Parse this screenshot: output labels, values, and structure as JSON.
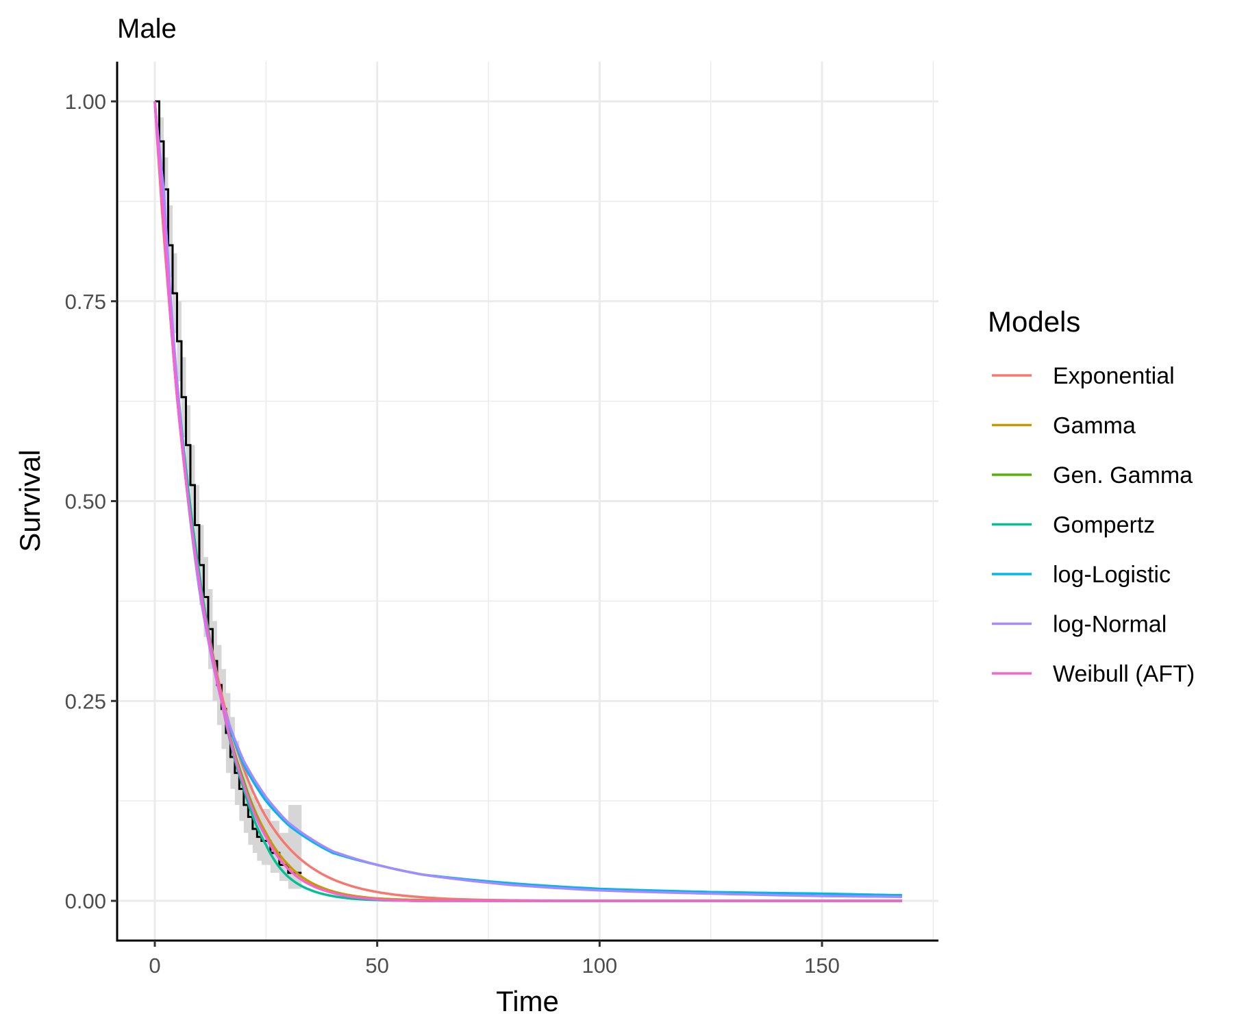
{
  "chart_data": {
    "type": "line",
    "title": "Male",
    "xlabel": "Time",
    "ylabel": "Survival",
    "xlim": [
      0,
      168
    ],
    "ylim": [
      0,
      1
    ],
    "x_ticks": [
      "0",
      "50",
      "100",
      "150"
    ],
    "y_ticks": [
      "0.00",
      "0.25",
      "0.50",
      "0.75",
      "1.00"
    ],
    "grid": true,
    "legend": {
      "title": "Models",
      "position": "right"
    },
    "x": [
      0,
      2,
      5,
      10,
      15,
      20,
      25,
      30,
      40,
      50,
      60,
      80,
      100,
      125,
      150,
      168
    ],
    "series": [
      {
        "name": "Exponential",
        "color": "#F8766D",
        "values": [
          1,
          0.835,
          0.638,
          0.407,
          0.259,
          0.165,
          0.105,
          0.067,
          0.027,
          0.011,
          0.0045,
          0.0007,
          0.0001,
          0,
          0,
          0
        ]
      },
      {
        "name": "Gamma",
        "color": "#C49A00",
        "values": [
          1,
          0.85,
          0.63,
          0.4,
          0.25,
          0.15,
          0.085,
          0.045,
          0.012,
          0.003,
          0.001,
          0,
          0,
          0,
          0,
          0
        ]
      },
      {
        "name": "Gen. Gamma",
        "color": "#53B400",
        "values": [
          1,
          0.85,
          0.63,
          0.4,
          0.25,
          0.15,
          0.08,
          0.04,
          0.01,
          0.002,
          0,
          0,
          0,
          0,
          0,
          0
        ]
      },
      {
        "name": "Gompertz",
        "color": "#00C094",
        "values": [
          1,
          0.86,
          0.65,
          0.41,
          0.25,
          0.14,
          0.07,
          0.03,
          0.006,
          0.001,
          0,
          0,
          0,
          0,
          0,
          0
        ]
      },
      {
        "name": "log-Logistic",
        "color": "#00B6EB",
        "values": [
          1,
          0.88,
          0.64,
          0.39,
          0.25,
          0.17,
          0.125,
          0.095,
          0.06,
          0.045,
          0.033,
          0.022,
          0.015,
          0.011,
          0.009,
          0.007
        ]
      },
      {
        "name": "log-Normal",
        "color": "#A58AFF",
        "values": [
          1,
          0.89,
          0.65,
          0.39,
          0.25,
          0.175,
          0.13,
          0.098,
          0.062,
          0.045,
          0.033,
          0.02,
          0.013,
          0.009,
          0.006,
          0.005
        ]
      },
      {
        "name": "Weibull (AFT)",
        "color": "#FB61D7",
        "values": [
          1,
          0.85,
          0.63,
          0.4,
          0.25,
          0.145,
          0.08,
          0.04,
          0.01,
          0.002,
          0,
          0,
          0,
          0,
          0,
          0
        ]
      }
    ],
    "kaplan_meier": {
      "color": "#000000",
      "ci_color": "#d6d6d6",
      "time": [
        0,
        1,
        2,
        3,
        4,
        5,
        6,
        7,
        8,
        9,
        10,
        11,
        12,
        13,
        14,
        15,
        16,
        17,
        18,
        19,
        20,
        21,
        22,
        23,
        24,
        26,
        28,
        30,
        33
      ],
      "survival": [
        1,
        0.95,
        0.89,
        0.82,
        0.76,
        0.7,
        0.63,
        0.57,
        0.52,
        0.47,
        0.42,
        0.38,
        0.34,
        0.3,
        0.27,
        0.24,
        0.21,
        0.18,
        0.16,
        0.14,
        0.12,
        0.105,
        0.09,
        0.08,
        0.075,
        0.06,
        0.045,
        0.035,
        0.035
      ],
      "lower": [
        1,
        0.92,
        0.85,
        0.78,
        0.71,
        0.65,
        0.58,
        0.52,
        0.47,
        0.42,
        0.37,
        0.33,
        0.29,
        0.25,
        0.22,
        0.19,
        0.16,
        0.14,
        0.12,
        0.1,
        0.085,
        0.07,
        0.06,
        0.05,
        0.045,
        0.035,
        0.025,
        0.015,
        0.015
      ],
      "upper": [
        1,
        0.98,
        0.93,
        0.87,
        0.81,
        0.75,
        0.68,
        0.62,
        0.57,
        0.52,
        0.47,
        0.43,
        0.39,
        0.35,
        0.32,
        0.29,
        0.26,
        0.23,
        0.2,
        0.18,
        0.16,
        0.145,
        0.13,
        0.12,
        0.115,
        0.1,
        0.085,
        0.12,
        0.12
      ]
    }
  }
}
